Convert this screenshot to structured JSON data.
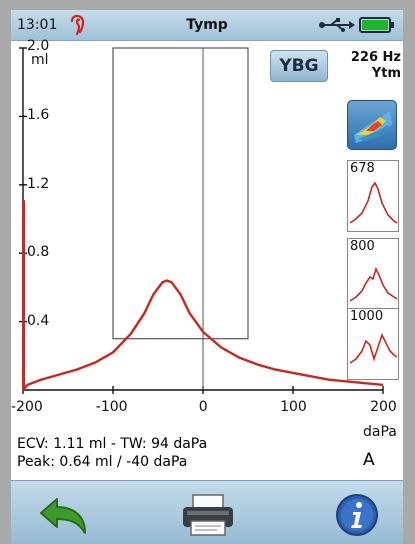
{
  "status_bar": {
    "time": "13:01",
    "title": "Tymp",
    "ear_color": "#d2231b",
    "icons": [
      "ear-icon",
      "usb-icon",
      "battery-icon"
    ]
  },
  "controls": {
    "ybg_label": "YBG",
    "freq_label": "226 Hz",
    "mode_label": "Ytm",
    "view_3d_icon": "surface-plot-icon"
  },
  "mini_tymps": [
    {
      "label": "678",
      "shape": "single-peak"
    },
    {
      "label": "800",
      "shape": "double-peak"
    },
    {
      "label": "1000",
      "shape": "notched"
    }
  ],
  "chart_data": {
    "type": "line",
    "x": [
      -200,
      -195,
      -180,
      -160,
      -140,
      -120,
      -100,
      -80,
      -65,
      -55,
      -45,
      -40,
      -35,
      -25,
      -15,
      0,
      20,
      40,
      60,
      80,
      100,
      120,
      140,
      160,
      180,
      200
    ],
    "y": [
      0.0,
      0.03,
      0.06,
      0.09,
      0.12,
      0.16,
      0.22,
      0.33,
      0.45,
      0.56,
      0.63,
      0.64,
      0.63,
      0.56,
      0.45,
      0.34,
      0.25,
      0.19,
      0.15,
      0.12,
      0.1,
      0.08,
      0.06,
      0.05,
      0.04,
      0.03
    ],
    "ecv_bar": 1.11,
    "xlim": [
      -200,
      200
    ],
    "ylim": [
      0,
      2.0
    ],
    "x_ticks": [
      "-200",
      "-100",
      "0",
      "100",
      "200"
    ],
    "y_ticks": [
      "0.4",
      "0.8",
      "1.2",
      "1.6",
      "2.0"
    ],
    "ylabel": "ml",
    "xlabel": "daPa",
    "line_color": "#c8281f",
    "normal_box": {
      "x": [
        -100,
        50
      ],
      "y": [
        0.3,
        2.0
      ]
    }
  },
  "results": {
    "line1": "ECV: 1.11 ml - TW: 94 daPa",
    "line2": "Peak: 0.64 ml / -40 daPa",
    "ear": "A"
  },
  "bottom_bar": {
    "icons": [
      "back-arrow-icon",
      "printer-icon",
      "info-icon"
    ]
  }
}
